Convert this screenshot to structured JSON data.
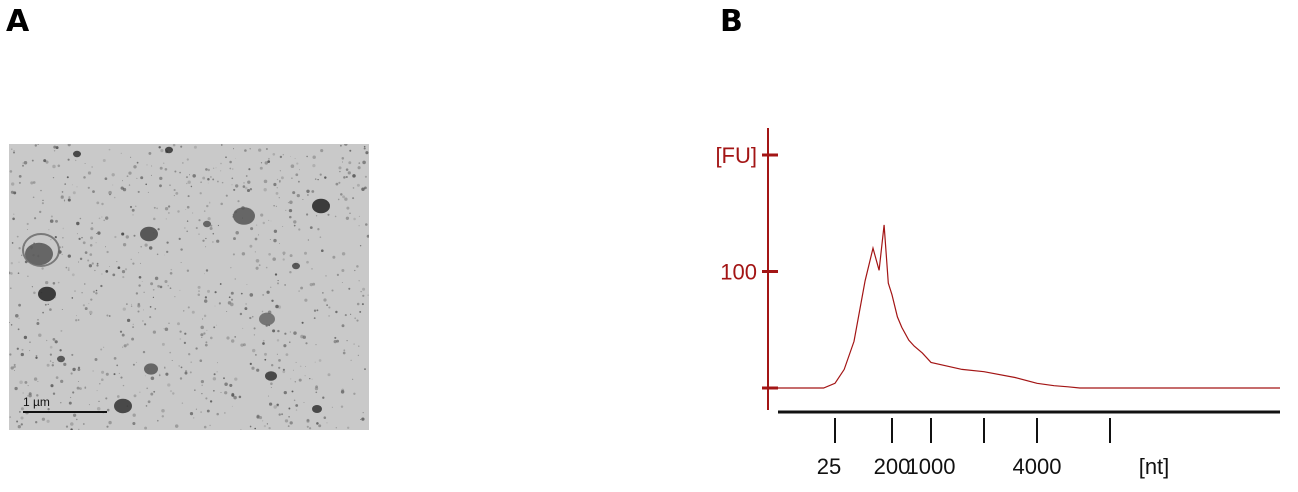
{
  "panels": {
    "a_label": "A",
    "b_label": "B"
  },
  "micrograph": {
    "scale_bar_label": "1 µm",
    "background_color": "#c9c9c9"
  },
  "chart_data": {
    "type": "line",
    "color": "#a31515",
    "xlabel": "",
    "x_unit": "[nt]",
    "ylabel": "[FU]",
    "x_tick_labels": [
      "25",
      "200",
      "1000",
      "4000"
    ],
    "x_ticks_unlabeled": 3,
    "y_tick_labels": [
      "[FU]",
      "100"
    ],
    "y_scale": "relative fluorescence units",
    "x": [
      0,
      20,
      25,
      35,
      50,
      75,
      100,
      125,
      150,
      175,
      200,
      250,
      300,
      400,
      500,
      700,
      1000,
      1500,
      2000,
      3000,
      4000,
      5000,
      6000,
      7000,
      10000,
      20000
    ],
    "y": [
      0,
      0,
      4,
      16,
      40,
      92,
      120,
      101,
      140,
      90,
      80,
      61,
      52,
      41,
      36,
      30,
      22,
      16,
      14,
      9,
      4,
      2,
      1,
      0,
      0,
      0
    ],
    "ylim": [
      0,
      200
    ],
    "grid": false,
    "legend": "none"
  }
}
